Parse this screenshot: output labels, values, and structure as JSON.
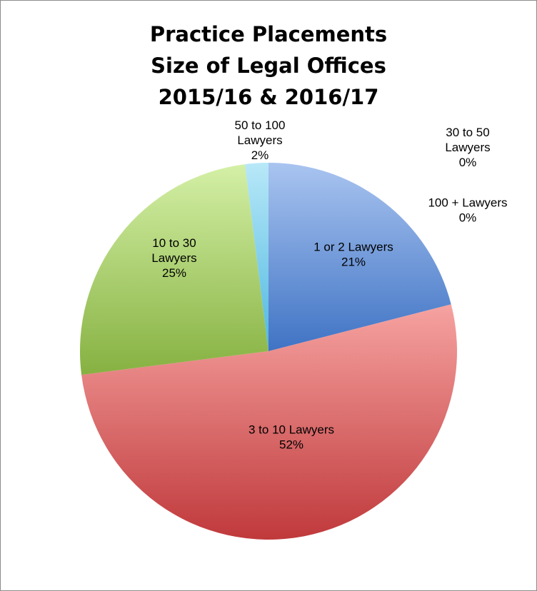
{
  "chart_data": {
    "type": "pie",
    "title": [
      "Practice Placements",
      "Size of Legal Offices",
      "2015/16 & 2016/17"
    ],
    "start_angle_deg": 0,
    "direction": "clockwise",
    "slices": [
      {
        "label": [
          "1 or 2 Lawyers"
        ],
        "percent_label": "21%",
        "value": 21,
        "color_light": "#a9c4f0",
        "color_dark": "#3f73c4"
      },
      {
        "label": [
          "30 to 50",
          "Lawyers"
        ],
        "percent_label": "0%",
        "value": 0,
        "color_light": "#f2c79a",
        "color_dark": "#e08a3c"
      },
      {
        "label": [
          "100 + Lawyers"
        ],
        "percent_label": "0%",
        "value": 0,
        "color_light": "#c9b6e8",
        "color_dark": "#7a5aa8"
      },
      {
        "label": [
          "3 to 10 Lawyers"
        ],
        "percent_label": "52%",
        "value": 52,
        "color_light": "#f6a3a1",
        "color_dark": "#c0393b"
      },
      {
        "label": [
          "10 to 30",
          "Lawyers"
        ],
        "percent_label": "25%",
        "value": 25,
        "color_light": "#d4f0a6",
        "color_dark": "#86b141"
      },
      {
        "label": [
          "50 to 100",
          "Lawyers"
        ],
        "percent_label": "2%",
        "value": 2,
        "color_light": "#b8e8f8",
        "color_dark": "#4fb8e0"
      }
    ]
  }
}
